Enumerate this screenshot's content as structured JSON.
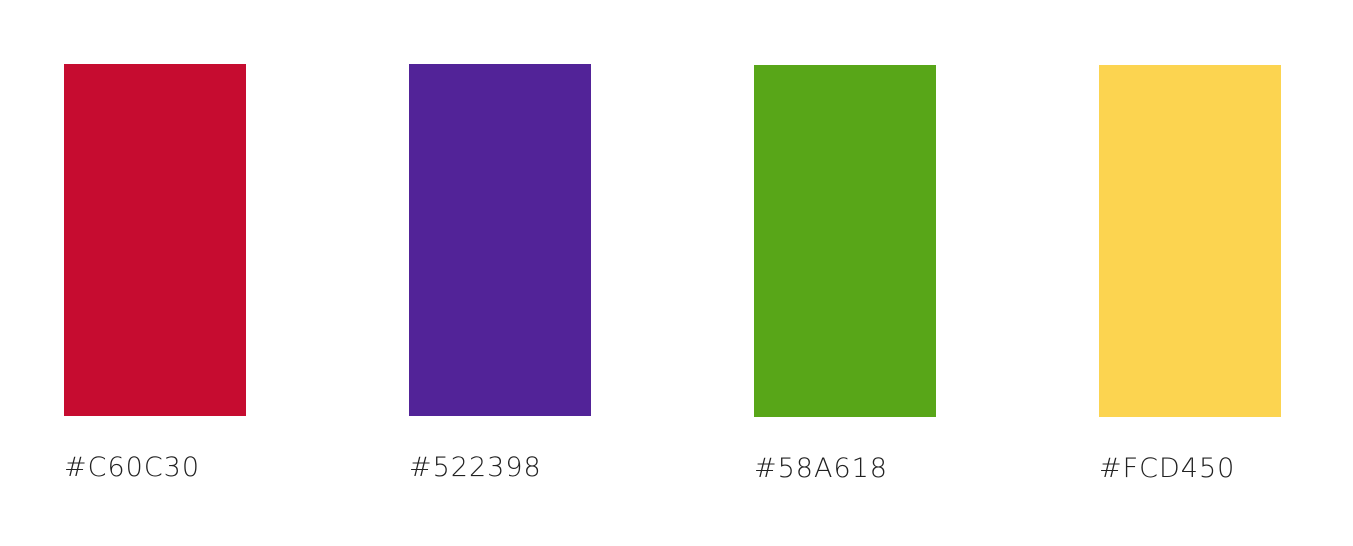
{
  "swatches": [
    {
      "label": "#C60C30",
      "color": "#C60C30"
    },
    {
      "label": "#522398",
      "color": "#522398"
    },
    {
      "label": "#58A618",
      "color": "#58A618"
    },
    {
      "label": "#FCD450",
      "color": "#FCD450"
    }
  ]
}
